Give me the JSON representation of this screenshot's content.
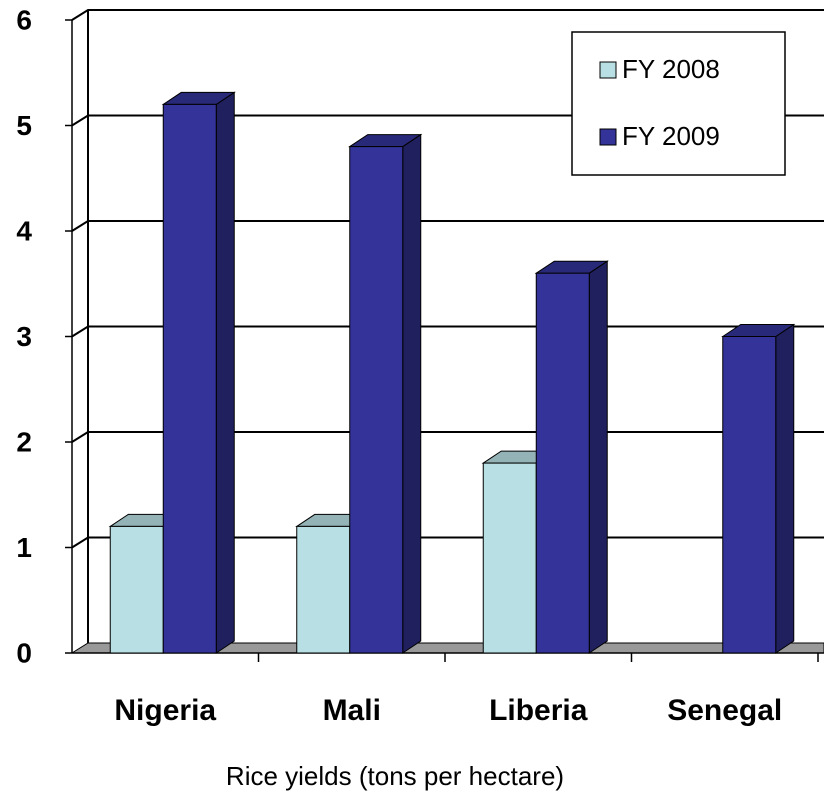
{
  "chart_data": {
    "type": "bar3d",
    "x_label": "Rice yields (tons per hectare)",
    "categories": [
      "Nigeria",
      "Mali",
      "Liberia",
      "Senegal"
    ],
    "series": [
      {
        "name": "FY 2008",
        "color": "#b8e0e4",
        "values": [
          1.2,
          1.2,
          1.8,
          null
        ]
      },
      {
        "name": "FY 2009",
        "color": "#333399",
        "values": [
          5.2,
          4.8,
          3.6,
          3.0
        ]
      }
    ],
    "ylim": [
      0,
      6
    ],
    "yticks": [
      0,
      1,
      2,
      3,
      4,
      5,
      6
    ],
    "grid": true,
    "legend": "upper right"
  }
}
